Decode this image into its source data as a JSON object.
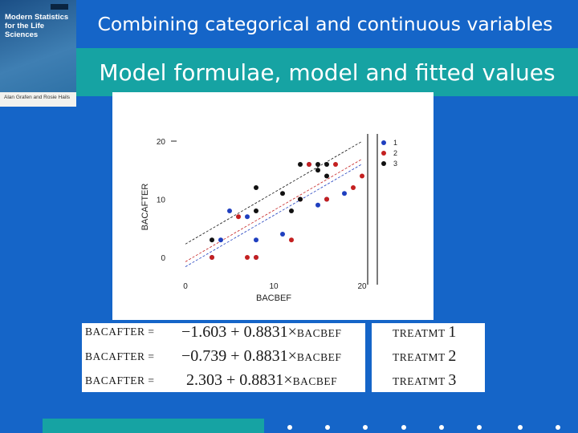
{
  "book_cover": {
    "title": "Modern Statistics for the Life Sciences",
    "authors": "Alan Grafen and Rosie Hails"
  },
  "slide": {
    "title": "Combining categorical and continuous variables",
    "subtitle": "Model formulae, model and fitted values"
  },
  "chart_data": {
    "type": "scatter",
    "xlabel": "BACBEF",
    "ylabel": "BACAFTER",
    "xlim": [
      0,
      20
    ],
    "ylim": [
      0,
      20
    ],
    "x_ticks": [
      "0",
      "10",
      "20"
    ],
    "y_ticks": [
      "0",
      "10",
      "20"
    ],
    "legend_position": "top-right",
    "legend": [
      "1",
      "2",
      "3"
    ],
    "series": [
      {
        "name": "1",
        "color": "#1f3fbf",
        "points": [
          [
            3,
            0
          ],
          [
            8,
            0
          ],
          [
            4,
            3
          ],
          [
            8,
            3
          ],
          [
            11,
            4
          ],
          [
            5,
            8
          ],
          [
            7,
            7
          ],
          [
            15,
            9
          ],
          [
            16,
            10
          ],
          [
            18,
            11
          ],
          [
            14,
            16
          ]
        ],
        "fit": {
          "intercept": -1.603,
          "slope": 0.8831
        }
      },
      {
        "name": "2",
        "color": "#c42020",
        "points": [
          [
            3,
            0
          ],
          [
            7,
            0
          ],
          [
            8,
            0
          ],
          [
            12,
            3
          ],
          [
            6,
            7
          ],
          [
            13,
            10
          ],
          [
            16,
            10
          ],
          [
            14,
            16
          ],
          [
            17,
            16
          ],
          [
            19,
            12
          ],
          [
            20,
            14
          ]
        ],
        "fit": {
          "intercept": -0.739,
          "slope": 0.8831
        }
      },
      {
        "name": "3",
        "color": "#111111",
        "points": [
          [
            3,
            3
          ],
          [
            8,
            8
          ],
          [
            8,
            12
          ],
          [
            12,
            8
          ],
          [
            13,
            10
          ],
          [
            13,
            16
          ],
          [
            15,
            16
          ],
          [
            15,
            15
          ],
          [
            16,
            14
          ],
          [
            11,
            11
          ],
          [
            16,
            16
          ]
        ],
        "fit": {
          "intercept": 2.303,
          "slope": 0.8831
        }
      }
    ]
  },
  "equations": [
    {
      "lhs": "BACAFTER =",
      "intercept": "−1.603",
      "plus": "+",
      "slope": "0.8831",
      "times": "×",
      "var": "BACBEF",
      "treat_label": "TREATMT",
      "treat_num": "1"
    },
    {
      "lhs": "BACAFTER =",
      "intercept": "−0.739",
      "plus": "+",
      "slope": "0.8831",
      "times": "×",
      "var": "BACBEF",
      "treat_label": "TREATMT",
      "treat_num": "2"
    },
    {
      "lhs": "BACAFTER =",
      "intercept": "2.303",
      "plus": "+",
      "slope": "0.8831",
      "times": "×",
      "var": "BACBEF",
      "treat_label": "TREATMT",
      "treat_num": "3"
    }
  ]
}
